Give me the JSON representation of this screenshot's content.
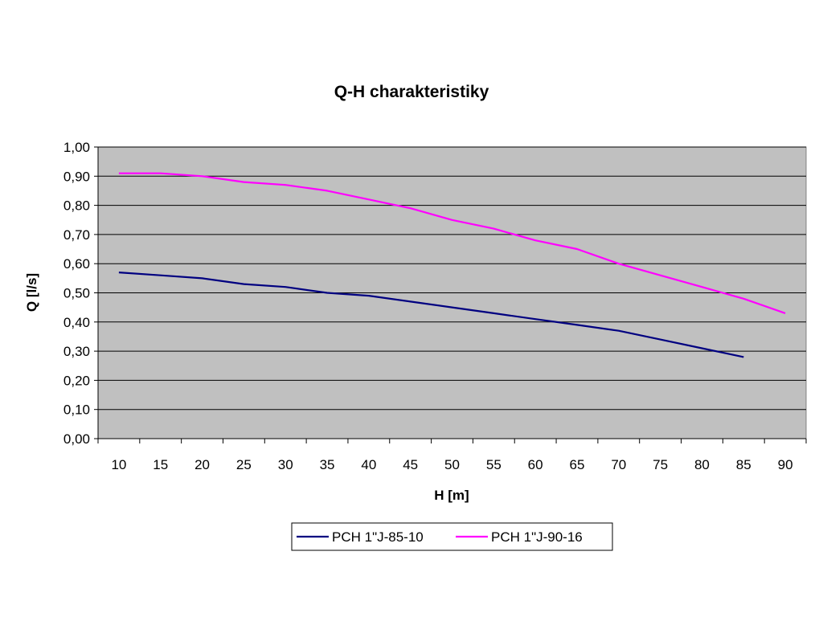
{
  "chart_data": {
    "type": "line",
    "title": "Q-H charakteristiky",
    "xlabel": "H [m]",
    "ylabel": "Q [l/s]",
    "categories": [
      "10",
      "15",
      "20",
      "25",
      "30",
      "35",
      "40",
      "45",
      "50",
      "55",
      "60",
      "65",
      "70",
      "75",
      "80",
      "85",
      "90"
    ],
    "y_ticks": [
      "0,00",
      "0,10",
      "0,20",
      "0,30",
      "0,40",
      "0,50",
      "0,60",
      "0,70",
      "0,80",
      "0,90",
      "1,00"
    ],
    "ylim": [
      0,
      1.0
    ],
    "grid": true,
    "plot_background": "#c0c0c0",
    "legend_position": "bottom",
    "series": [
      {
        "name": "PCH 1\"J-85-10",
        "color": "#000080",
        "values": [
          0.57,
          0.56,
          0.55,
          0.53,
          0.52,
          0.5,
          0.49,
          0.47,
          0.45,
          0.43,
          0.41,
          0.39,
          0.37,
          0.34,
          0.31,
          0.28,
          null
        ]
      },
      {
        "name": "PCH 1\"J-90-16",
        "color": "#ff00ff",
        "values": [
          0.91,
          0.91,
          0.9,
          0.88,
          0.87,
          0.85,
          0.82,
          0.79,
          0.75,
          0.72,
          0.68,
          0.65,
          0.6,
          0.56,
          0.52,
          0.48,
          0.43
        ]
      }
    ]
  }
}
